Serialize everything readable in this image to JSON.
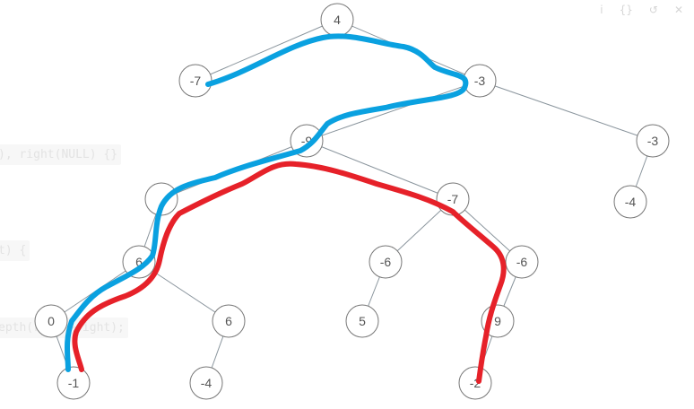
{
  "toolbar": {
    "items": [
      {
        "name": "info-icon",
        "glyph": "i"
      },
      {
        "name": "braces-icon",
        "glyph": "{}"
      },
      {
        "name": "reset-icon",
        "glyph": "↺"
      },
      {
        "name": "close-icon",
        "glyph": "✕"
      }
    ]
  },
  "background_code": {
    "line1": "), right(NULL) {}",
    "line2": "t) {",
    "line3": "epth(root->right);"
  },
  "colors": {
    "node_stroke": "#777777",
    "edge": "#8a959d",
    "path_blue": "#0aa1e0",
    "path_red": "#e62129",
    "node_text": "#555555"
  },
  "tree": {
    "nodes": [
      {
        "id": "n1",
        "label": "4"
      },
      {
        "id": "n2",
        "label": "-7"
      },
      {
        "id": "n3",
        "label": "-3"
      },
      {
        "id": "n4",
        "label": "-9"
      },
      {
        "id": "n5",
        "label": "-3"
      },
      {
        "id": "n6",
        "label": "-4"
      },
      {
        "id": "n7",
        "label": ""
      },
      {
        "id": "n8",
        "label": "-7"
      },
      {
        "id": "n9",
        "label": "6"
      },
      {
        "id": "n10",
        "label": "-6"
      },
      {
        "id": "n11",
        "label": "-6"
      },
      {
        "id": "n12",
        "label": "0"
      },
      {
        "id": "n13",
        "label": "6"
      },
      {
        "id": "n14",
        "label": "5"
      },
      {
        "id": "n15",
        "label": "9"
      },
      {
        "id": "n16",
        "label": "-1"
      },
      {
        "id": "n17",
        "label": "-4"
      },
      {
        "id": "n18",
        "label": "-2"
      }
    ],
    "edges": [
      [
        "n1",
        "n2"
      ],
      [
        "n1",
        "n3"
      ],
      [
        "n3",
        "n4"
      ],
      [
        "n3",
        "n5"
      ],
      [
        "n5",
        "n6"
      ],
      [
        "n4",
        "n7"
      ],
      [
        "n4",
        "n8"
      ],
      [
        "n7",
        "n9"
      ],
      [
        "n8",
        "n10"
      ],
      [
        "n8",
        "n11"
      ],
      [
        "n9",
        "n12"
      ],
      [
        "n9",
        "n13"
      ],
      [
        "n10",
        "n14"
      ],
      [
        "n11",
        "n15"
      ],
      [
        "n12",
        "n16"
      ],
      [
        "n13",
        "n17"
      ],
      [
        "n15",
        "n18"
      ]
    ]
  }
}
